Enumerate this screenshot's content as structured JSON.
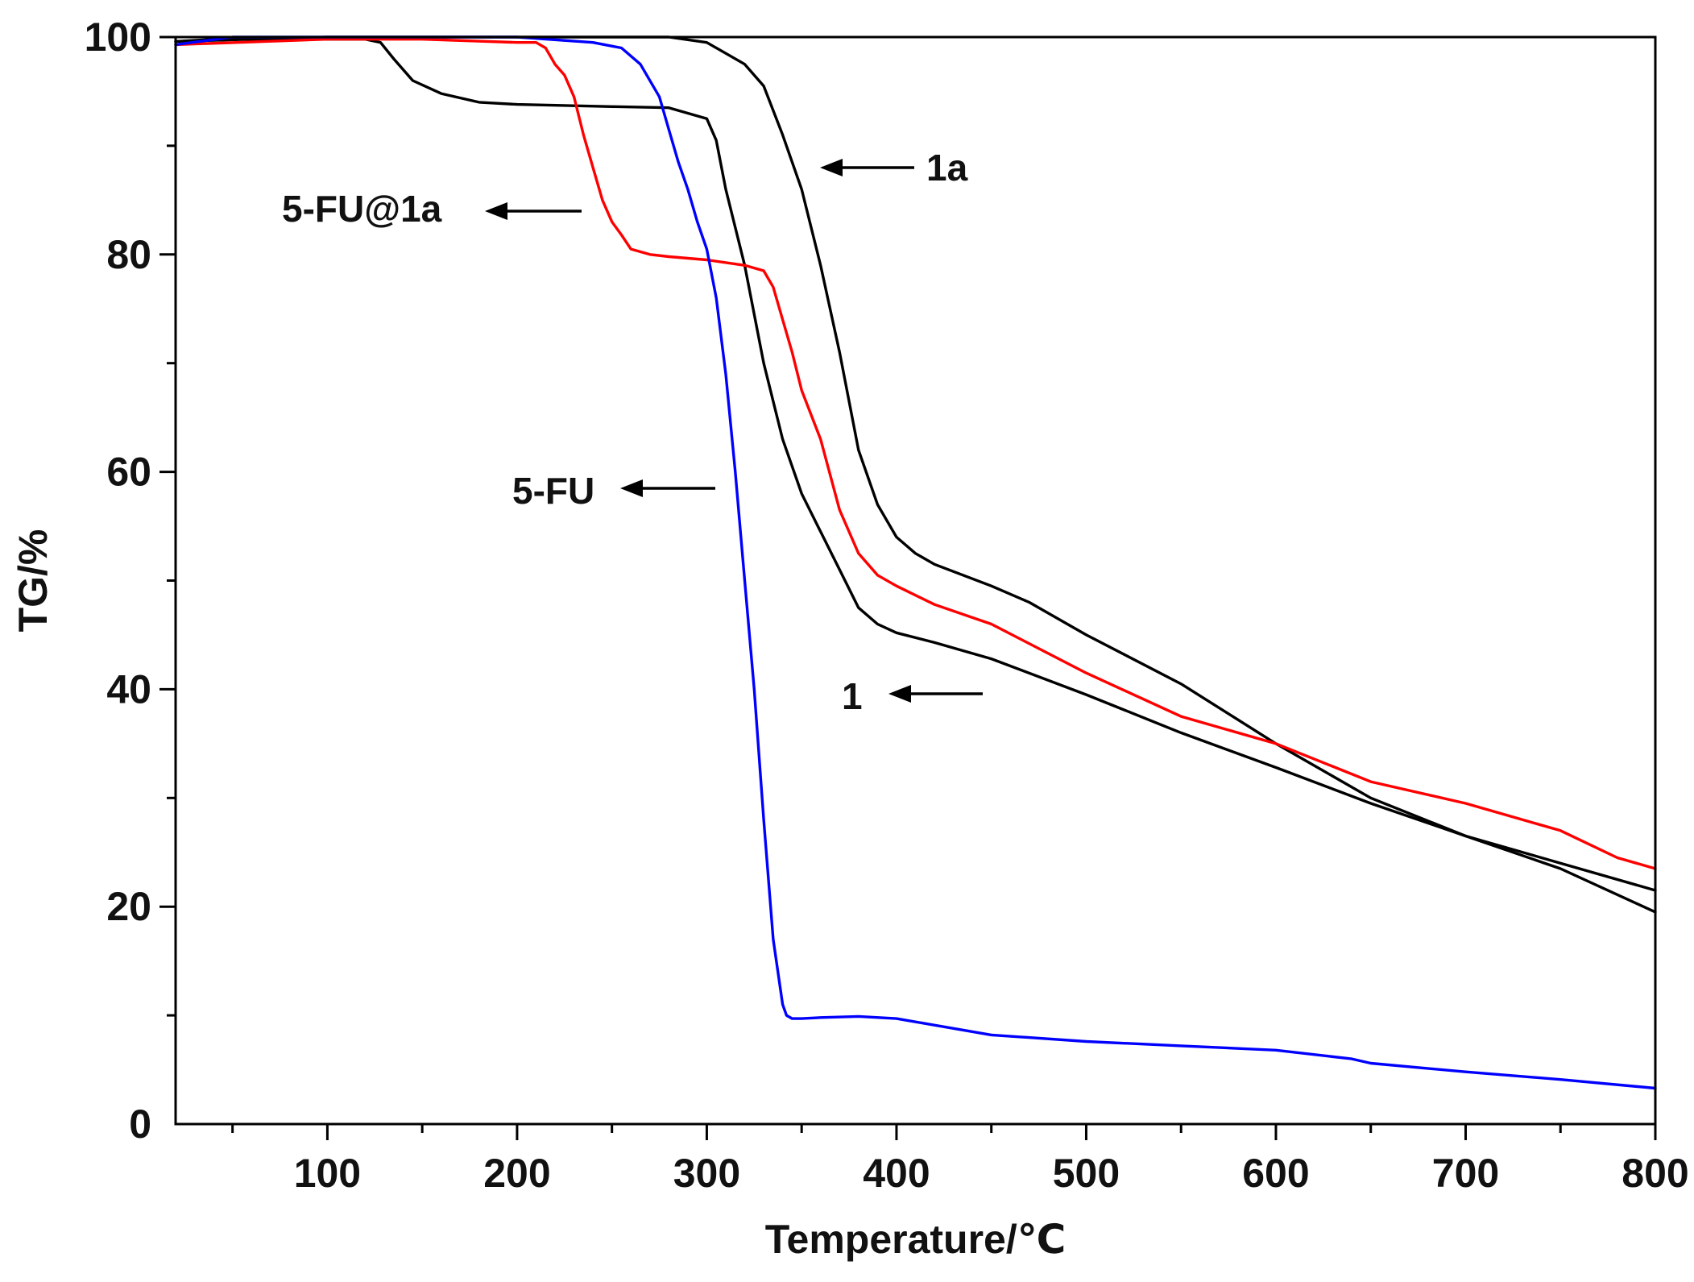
{
  "chart_data": {
    "type": "line",
    "title": "",
    "xlabel": "Temperature/℃",
    "ylabel": "TG/%",
    "xlim": [
      20,
      800
    ],
    "ylim": [
      0,
      100
    ],
    "xticks": [
      100,
      200,
      300,
      400,
      500,
      600,
      700,
      800
    ],
    "yticks": [
      0,
      20,
      40,
      60,
      80,
      100
    ],
    "grid": false,
    "series": [
      {
        "name": "1",
        "color": "#000000",
        "x": [
          20,
          40,
          80,
          120,
          128,
          135,
          145,
          160,
          180,
          200,
          250,
          280,
          300,
          305,
          310,
          320,
          330,
          340,
          350,
          360,
          370,
          380,
          390,
          400,
          420,
          450,
          500,
          550,
          600,
          650,
          700,
          750,
          800
        ],
        "y": [
          99.6,
          99.8,
          99.8,
          99.8,
          99.5,
          98,
          96,
          94.8,
          94,
          93.8,
          93.6,
          93.5,
          92.5,
          90.5,
          86,
          79,
          70,
          63,
          58,
          54.5,
          51,
          47.5,
          46,
          45.2,
          44.3,
          42.8,
          39.5,
          36,
          32.8,
          29.5,
          26.5,
          24,
          21.5
        ]
      },
      {
        "name": "1a",
        "color": "#000000",
        "x": [
          20,
          100,
          200,
          250,
          280,
          300,
          320,
          330,
          340,
          350,
          360,
          370,
          380,
          390,
          400,
          410,
          420,
          450,
          470,
          500,
          550,
          600,
          650,
          700,
          750,
          800
        ],
        "y": [
          99.6,
          100,
          100,
          100,
          100,
          99.5,
          97.5,
          95.5,
          91,
          86,
          79,
          71,
          62,
          57,
          54,
          52.5,
          51.5,
          49.5,
          48,
          45,
          40.5,
          35,
          30,
          26.5,
          23.5,
          19.5
        ]
      },
      {
        "name": "5-FU@1a",
        "color": "#ff0000",
        "x": [
          20,
          100,
          150,
          200,
          210,
          215,
          220,
          225,
          230,
          235,
          240,
          245,
          250,
          255,
          260,
          270,
          280,
          300,
          320,
          330,
          335,
          340,
          345,
          350,
          360,
          370,
          380,
          390,
          400,
          420,
          450,
          500,
          550,
          600,
          650,
          700,
          750,
          780,
          800
        ],
        "y": [
          99.3,
          99.8,
          99.8,
          99.5,
          99.5,
          99,
          97.5,
          96.5,
          94.5,
          91,
          88,
          85,
          83,
          81.8,
          80.5,
          80,
          79.8,
          79.5,
          79,
          78.5,
          77,
          74,
          71,
          67.5,
          63,
          56.5,
          52.5,
          50.5,
          49.5,
          47.8,
          46,
          41.5,
          37.5,
          35,
          31.5,
          29.5,
          27,
          24.5,
          23.5
        ]
      },
      {
        "name": "5-FU",
        "color": "#0000ff",
        "x": [
          20,
          50,
          100,
          200,
          240,
          255,
          265,
          275,
          280,
          285,
          290,
          295,
          300,
          305,
          310,
          315,
          320,
          325,
          330,
          335,
          340,
          342,
          345,
          350,
          360,
          380,
          400,
          450,
          500,
          550,
          600,
          640,
          650,
          700,
          750,
          800
        ],
        "y": [
          99.3,
          100,
          100,
          100,
          99.5,
          99,
          97.5,
          94.5,
          91.5,
          88.5,
          86,
          83,
          80.5,
          76,
          69,
          60,
          50,
          40,
          28,
          17,
          11,
          10,
          9.7,
          9.7,
          9.8,
          9.9,
          9.7,
          8.2,
          7.6,
          7.2,
          6.8,
          6,
          5.6,
          4.8,
          4.1,
          3.3
        ]
      }
    ],
    "annotations": [
      {
        "text": "1a",
        "series": "1a",
        "x": 355,
        "y": 88.5
      },
      {
        "text": "5-FU@1a",
        "series": "5-FU@1a",
        "x": 240,
        "y": 84.5
      },
      {
        "text": "5-FU",
        "series": "5-FU",
        "x": 300,
        "y": 59
      },
      {
        "text": "1",
        "series": "1",
        "x": 380,
        "y": 39.5
      }
    ]
  }
}
